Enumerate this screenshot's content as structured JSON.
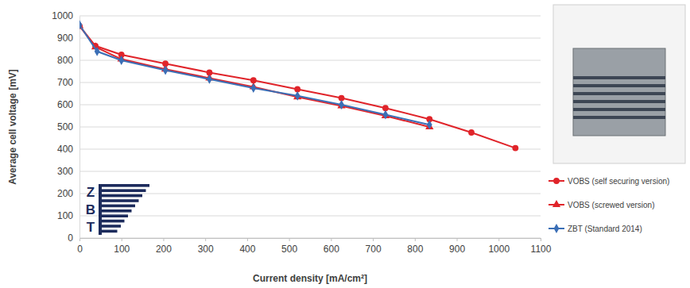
{
  "chart_data": {
    "type": "line",
    "x_label": "Current density [mA/cm²]",
    "y_label": "Average cell voltage [mV]",
    "annotations": [
      "Z",
      "B",
      "T"
    ],
    "xlim": [
      0,
      1100
    ],
    "xticks": [
      0,
      100,
      200,
      300,
      400,
      500,
      600,
      700,
      800,
      900,
      1000,
      1100
    ],
    "ylim": [
      0,
      1000
    ],
    "yticks": [
      0,
      100,
      200,
      300,
      400,
      500,
      600,
      700,
      800,
      900,
      1000
    ],
    "grid": true,
    "legend": "right",
    "series": [
      {
        "name": "VOBS (self securing version)",
        "color": "#e0242a",
        "marker": "circle",
        "line_style": "solid",
        "x": [
          0,
          38,
          100,
          205,
          310,
          415,
          520,
          625,
          730,
          835,
          935,
          1040
        ],
        "values": [
          955,
          865,
          825,
          785,
          745,
          710,
          670,
          630,
          585,
          535,
          475,
          405
        ]
      },
      {
        "name": "VOBS (screwed version)",
        "color": "#e0242a",
        "marker": "triangle",
        "line_style": "solid",
        "x": [
          0,
          38,
          100,
          205,
          310,
          415,
          520,
          625,
          730,
          835
        ],
        "values": [
          955,
          860,
          805,
          760,
          720,
          680,
          635,
          595,
          550,
          500
        ]
      },
      {
        "name": "ZBT (Standard 2014)",
        "color": "#3b6fb6",
        "marker": "diamond",
        "line_style": "solid",
        "x": [
          0,
          42,
          100,
          205,
          310,
          415,
          520,
          625,
          730,
          835
        ],
        "values": [
          960,
          840,
          800,
          755,
          715,
          675,
          640,
          600,
          555,
          510
        ]
      }
    ]
  }
}
